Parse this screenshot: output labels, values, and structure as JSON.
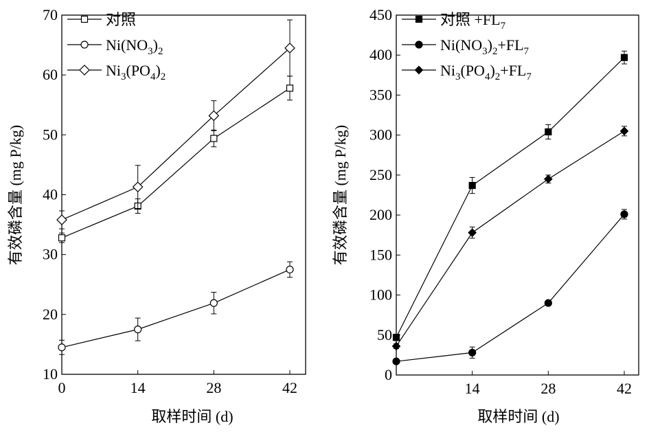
{
  "chart_data": [
    {
      "type": "line",
      "title": "",
      "xlabel": "取样时间 (d)",
      "ylabel": "有效磷含量 (mg P/kg)",
      "x": [
        0,
        14,
        28,
        42
      ],
      "xticks": [
        0,
        14,
        28,
        42
      ],
      "ylim": [
        10,
        70
      ],
      "yticks": [
        10,
        20,
        30,
        40,
        50,
        60,
        70
      ],
      "legend_position": "top-left",
      "series": [
        {
          "name": "对照",
          "marker": "square-open",
          "values": [
            32.8,
            38.1,
            49.4,
            57.8
          ],
          "errors": [
            0.8,
            1.2,
            1.4,
            2.0
          ]
        },
        {
          "name": "Ni(NO3)2",
          "marker": "circle-open",
          "values": [
            14.5,
            17.5,
            21.9,
            27.5
          ],
          "errors": [
            1.2,
            1.9,
            1.8,
            1.3
          ]
        },
        {
          "name": "Ni3(PO4)2",
          "marker": "diamond-open",
          "values": [
            35.8,
            41.3,
            53.2,
            64.5
          ],
          "errors": [
            1.5,
            3.6,
            2.5,
            4.7
          ]
        }
      ]
    },
    {
      "type": "line",
      "title": "",
      "xlabel": "取样时间 (d)",
      "ylabel": "有效磷含量 (mg P/kg)",
      "x": [
        0,
        14,
        28,
        42
      ],
      "xticks": [
        14,
        28,
        42
      ],
      "ylim": [
        0,
        450
      ],
      "yticks": [
        0,
        50,
        100,
        150,
        200,
        250,
        300,
        350,
        400,
        450
      ],
      "legend_position": "top-left",
      "series": [
        {
          "name": "对照 +FL7",
          "marker": "square-filled",
          "values": [
            47,
            237,
            304,
            397
          ],
          "errors": [
            4,
            10,
            9,
            8
          ]
        },
        {
          "name": "Ni(NO3)2+FL7",
          "marker": "circle-filled",
          "values": [
            17,
            28,
            90,
            201
          ],
          "errors": [
            2,
            7,
            3,
            6
          ]
        },
        {
          "name": "Ni3(PO4)2+FL7",
          "marker": "diamond-filled",
          "values": [
            36,
            178,
            245,
            305
          ],
          "errors": [
            3,
            7,
            5,
            6
          ]
        }
      ]
    }
  ]
}
